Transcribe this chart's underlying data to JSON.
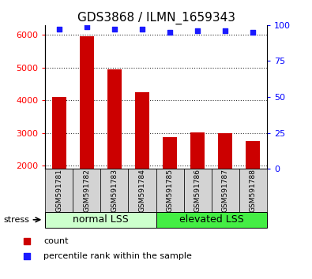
{
  "title": "GDS3868 / ILMN_1659343",
  "categories": [
    "GSM591781",
    "GSM591782",
    "GSM591783",
    "GSM591784",
    "GSM591785",
    "GSM591786",
    "GSM591787",
    "GSM591788"
  ],
  "bar_values": [
    4100,
    5950,
    4950,
    4250,
    2880,
    3010,
    3000,
    2760
  ],
  "percentile_values": [
    97,
    99,
    97,
    97,
    95,
    96,
    96,
    95
  ],
  "bar_color": "#cc0000",
  "dot_color": "#1a1aff",
  "ylim_left": [
    1900,
    6300
  ],
  "ylim_right": [
    0,
    100
  ],
  "yticks_left": [
    2000,
    3000,
    4000,
    5000,
    6000
  ],
  "yticks_right": [
    0,
    25,
    50,
    75,
    100
  ],
  "group1_label": "normal LSS",
  "group2_label": "elevated LSS",
  "stress_label": "stress",
  "legend_count": "count",
  "legend_percentile": "percentile rank within the sample",
  "group1_color": "#ccffcc",
  "group2_color": "#44ee44",
  "xlabel_area_color": "#d3d3d3",
  "title_fontsize": 11,
  "tick_fontsize": 8,
  "label_fontsize": 6.5,
  "group_fontsize": 9,
  "legend_fontsize": 8,
  "bar_width": 0.5,
  "dot_size": 22
}
